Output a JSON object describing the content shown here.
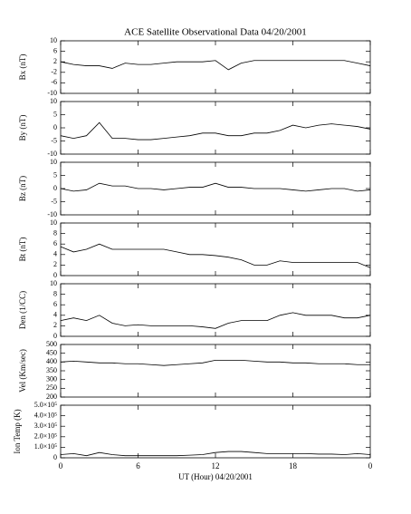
{
  "chart_data": [
    {
      "type": "line",
      "title": "ACE Satellite Observational Data  04/20/2001",
      "ylabel": "Bx (nT)",
      "color": "#000000",
      "x": [
        0,
        1,
        2,
        3,
        4,
        5,
        6,
        7,
        8,
        9,
        10,
        11,
        12,
        13,
        14,
        15,
        16,
        17,
        18,
        19,
        20,
        21,
        22,
        23,
        24
      ],
      "values": [
        2,
        1,
        0.5,
        0.5,
        -0.5,
        1.5,
        1,
        1,
        1.5,
        2,
        2,
        2,
        2.5,
        -1,
        1.5,
        2.5,
        2.5,
        2.5,
        2.5,
        2.5,
        2.5,
        2.5,
        2.5,
        1.5,
        0.5
      ],
      "ylim": [
        -10,
        10
      ],
      "yticks": [
        -10,
        -6,
        -2,
        2,
        6,
        10
      ]
    },
    {
      "type": "line",
      "ylabel": "By (nT)",
      "color": "#000000",
      "x": [
        0,
        1,
        2,
        3,
        4,
        5,
        6,
        7,
        8,
        9,
        10,
        11,
        12,
        13,
        14,
        15,
        16,
        17,
        18,
        19,
        20,
        21,
        22,
        23,
        24
      ],
      "values": [
        -3,
        -4,
        -3,
        2,
        -4,
        -4,
        -4.5,
        -4.5,
        -4,
        -3.5,
        -3,
        -2,
        -2,
        -3,
        -3,
        -2,
        -2,
        -1,
        1,
        0,
        1,
        1.5,
        1,
        0.5,
        -0.5
      ],
      "ylim": [
        -10,
        10
      ],
      "yticks": [
        -10,
        -5,
        0,
        5,
        10
      ]
    },
    {
      "type": "line",
      "ylabel": "Bz (nT)",
      "color": "#000000",
      "x": [
        0,
        1,
        2,
        3,
        4,
        5,
        6,
        7,
        8,
        9,
        10,
        11,
        12,
        13,
        14,
        15,
        16,
        17,
        18,
        19,
        20,
        21,
        22,
        23,
        24
      ],
      "values": [
        0,
        -1,
        -0.5,
        2,
        1,
        1,
        0,
        0,
        -0.5,
        0,
        0.5,
        0.5,
        2,
        0.5,
        0.5,
        0,
        0,
        0,
        -0.5,
        -1,
        -0.5,
        0,
        0,
        -1,
        -0.5
      ],
      "ylim": [
        -10,
        10
      ],
      "yticks": [
        -10,
        -5,
        0,
        5,
        10
      ]
    },
    {
      "type": "line",
      "ylabel": "Bt (nT)",
      "color": "#000000",
      "x": [
        0,
        1,
        2,
        3,
        4,
        5,
        6,
        7,
        8,
        9,
        10,
        11,
        12,
        13,
        14,
        15,
        16,
        17,
        18,
        19,
        20,
        21,
        22,
        23,
        24
      ],
      "values": [
        5.5,
        4.5,
        5,
        6,
        5,
        5,
        5,
        5,
        5,
        4.5,
        4,
        4,
        3.8,
        3.5,
        3,
        2,
        2,
        2.8,
        2.5,
        2.5,
        2.5,
        2.5,
        2.5,
        2.5,
        1.5
      ],
      "ylim": [
        0,
        10
      ],
      "yticks": [
        0,
        2,
        4,
        6,
        8,
        10
      ]
    },
    {
      "type": "line",
      "ylabel": "Den (1/CC)",
      "color": "#000000",
      "x": [
        0,
        1,
        2,
        3,
        4,
        5,
        6,
        7,
        8,
        9,
        10,
        11,
        12,
        13,
        14,
        15,
        16,
        17,
        18,
        19,
        20,
        21,
        22,
        23,
        24
      ],
      "values": [
        3,
        3.5,
        3,
        4,
        2.5,
        2,
        2.2,
        2,
        2,
        2,
        2,
        1.8,
        1.5,
        2.5,
        3,
        3,
        3,
        4,
        4.5,
        4,
        4,
        4,
        3.5,
        3.5,
        4
      ],
      "ylim": [
        0,
        10
      ],
      "yticks": [
        0,
        2,
        4,
        6,
        8,
        10
      ]
    },
    {
      "type": "line",
      "ylabel": "Vel (Km/sec)",
      "color": "#000000",
      "x": [
        0,
        1,
        2,
        3,
        4,
        5,
        6,
        7,
        8,
        9,
        10,
        11,
        12,
        13,
        14,
        15,
        16,
        17,
        18,
        19,
        20,
        21,
        22,
        23,
        24
      ],
      "values": [
        400,
        405,
        400,
        395,
        395,
        390,
        390,
        385,
        380,
        385,
        390,
        395,
        410,
        410,
        410,
        405,
        400,
        400,
        395,
        395,
        390,
        390,
        390,
        385,
        385
      ],
      "ylim": [
        200,
        500
      ],
      "yticks": [
        200,
        250,
        300,
        350,
        400,
        450,
        500
      ]
    },
    {
      "type": "line",
      "ylabel": "Ion Temp (K)",
      "xlabel": "UT (Hour)  04/20/2001",
      "color": "#000000",
      "x": [
        0,
        1,
        2,
        3,
        4,
        5,
        6,
        7,
        8,
        9,
        10,
        11,
        12,
        13,
        14,
        15,
        16,
        17,
        18,
        19,
        20,
        21,
        22,
        23,
        24
      ],
      "values": [
        30000,
        40000,
        20000,
        50000,
        30000,
        20000,
        20000,
        20000,
        20000,
        20000,
        25000,
        30000,
        50000,
        60000,
        60000,
        50000,
        40000,
        40000,
        40000,
        40000,
        35000,
        35000,
        30000,
        40000,
        30000
      ],
      "ylim": [
        0,
        500000
      ],
      "yticks": [
        0,
        {
          "value": 100000,
          "label": "1.0×10⁵"
        },
        {
          "value": 200000,
          "label": "2.0×10⁵"
        },
        {
          "value": 300000,
          "label": "3.0×10⁵"
        },
        {
          "value": 400000,
          "label": "4.0×10⁵"
        },
        {
          "value": 500000,
          "label": "5.0×10⁵"
        }
      ],
      "xlim": [
        0,
        24
      ],
      "xticks": [
        0,
        6,
        12,
        18,
        {
          "value": 24,
          "label": "0"
        }
      ]
    }
  ]
}
